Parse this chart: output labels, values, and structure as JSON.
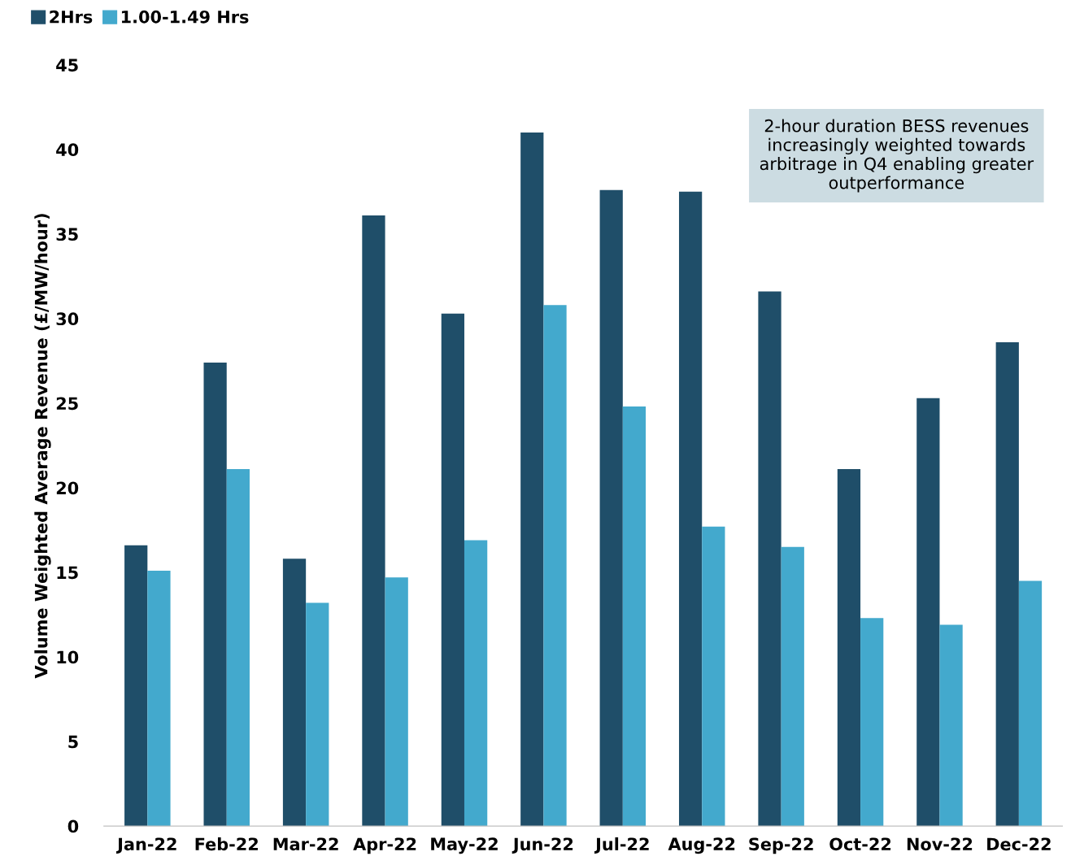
{
  "chart_data": {
    "type": "bar",
    "ylabel": "Volume Weighted Average Revenue (£/MW/hour)",
    "categories": [
      "Jan-22",
      "Feb-22",
      "Mar-22",
      "Apr-22",
      "May-22",
      "Jun-22",
      "Jul-22",
      "Aug-22",
      "Sep-22",
      "Oct-22",
      "Nov-22",
      "Dec-22"
    ],
    "series": [
      {
        "name": "2Hrs",
        "color": "#1f4e69",
        "values": [
          16.6,
          27.4,
          15.8,
          36.1,
          30.3,
          41.0,
          37.6,
          37.5,
          31.6,
          21.1,
          25.3,
          28.6
        ]
      },
      {
        "name": "1.00-1.49 Hrs",
        "color": "#43a9cd",
        "values": [
          15.1,
          21.1,
          13.2,
          14.7,
          16.9,
          30.8,
          24.8,
          17.7,
          16.5,
          12.3,
          11.9,
          14.5
        ]
      }
    ],
    "ylim": [
      0,
      45
    ],
    "yticks": [
      0,
      5,
      10,
      15,
      20,
      25,
      30,
      35,
      40,
      45
    ],
    "grid": false,
    "legend": "top left",
    "annotations": [
      "2-hour duration BESS revenues increasingly weighted towards arbitrage in Q4 enabling greater outperformance"
    ]
  }
}
